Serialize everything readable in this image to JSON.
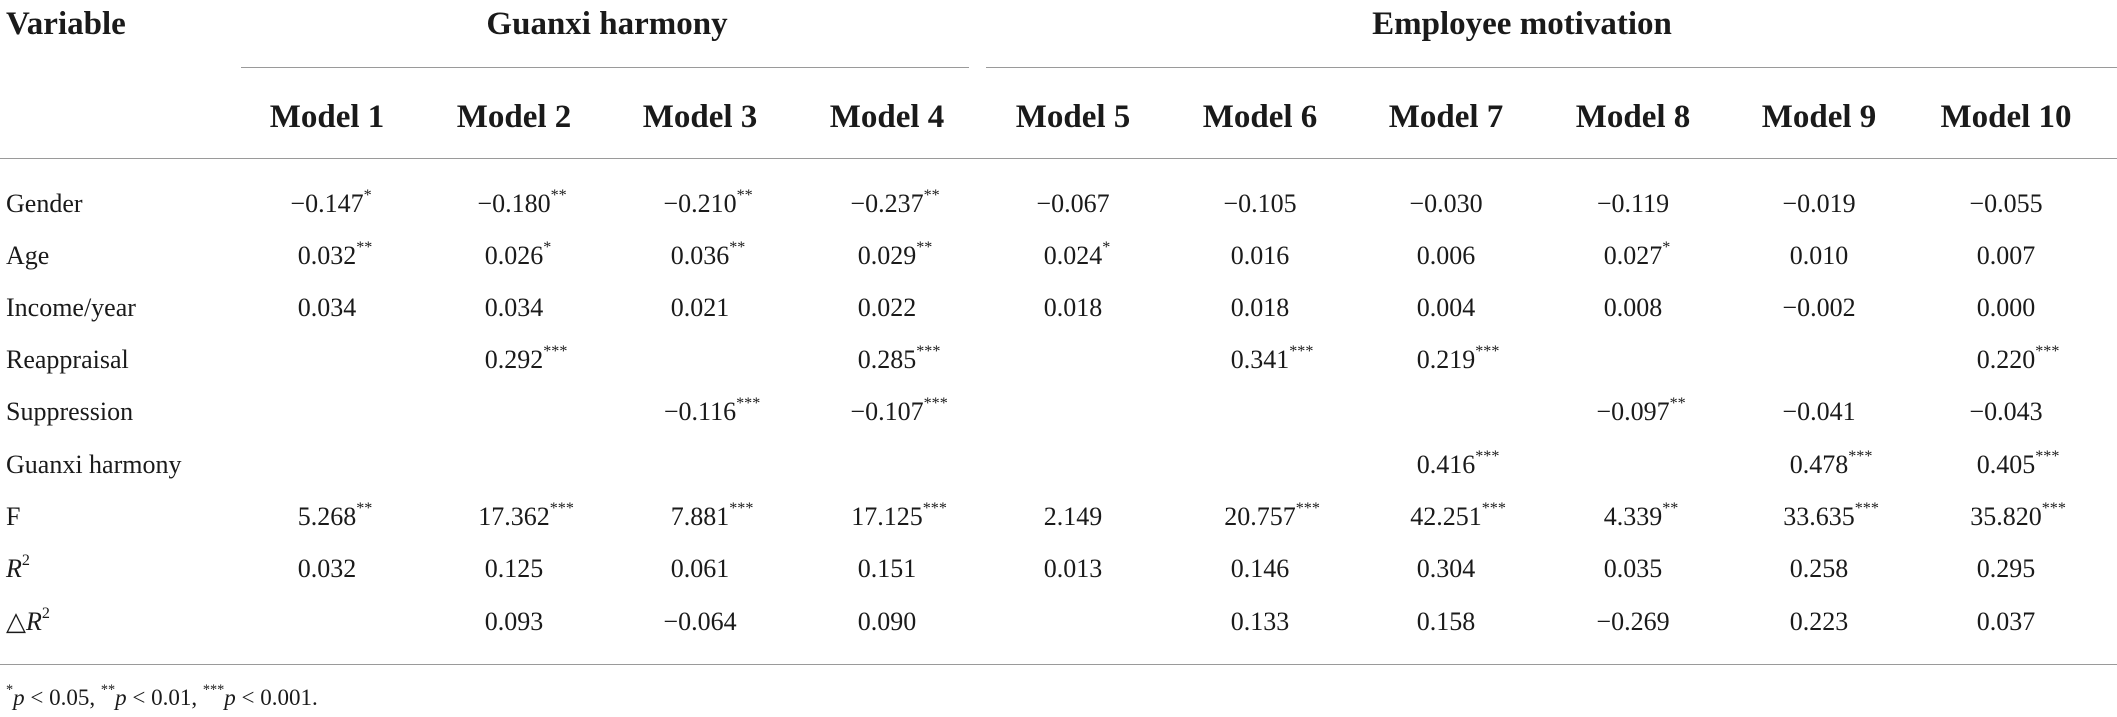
{
  "table": {
    "corner_header": "Variable",
    "groups": [
      "Guanxi harmony",
      "Employee motivation"
    ],
    "models": [
      "Model 1",
      "Model 2",
      "Model 3",
      "Model 4",
      "Model 5",
      "Model 6",
      "Model 7",
      "Model 8",
      "Model 9",
      "Model 10"
    ],
    "rows": [
      {
        "label": "Gender",
        "cells": [
          "−0.147*",
          "−0.180**",
          "−0.210**",
          "−0.237**",
          "−0.067",
          "−0.105",
          "−0.030",
          "−0.119",
          "−0.019",
          "−0.055"
        ]
      },
      {
        "label": "Age",
        "cells": [
          "0.032**",
          "0.026*",
          "0.036**",
          "0.029**",
          "0.024*",
          "0.016",
          "0.006",
          "0.027*",
          "0.010",
          "0.007"
        ]
      },
      {
        "label": "Income/year",
        "cells": [
          "0.034",
          "0.034",
          "0.021",
          "0.022",
          "0.018",
          "0.018",
          "0.004",
          "0.008",
          "−0.002",
          "0.000"
        ]
      },
      {
        "label": "Reappraisal",
        "cells": [
          "",
          "0.292***",
          "",
          "0.285***",
          "",
          "0.341***",
          "0.219***",
          "",
          "",
          "0.220***"
        ]
      },
      {
        "label": "Suppression",
        "cells": [
          "",
          "",
          "−0.116***",
          "−0.107***",
          "",
          "",
          "",
          "−0.097**",
          "−0.041",
          "−0.043"
        ]
      },
      {
        "label": "Guanxi harmony",
        "cells": [
          "",
          "",
          "",
          "",
          "",
          "",
          "0.416***",
          "",
          "0.478***",
          "0.405***"
        ]
      },
      {
        "label": "F",
        "cells": [
          "5.268**",
          "17.362***",
          "7.881***",
          "17.125***",
          "2.149",
          "20.757***",
          "42.251***",
          "4.339**",
          "33.635***",
          "35.820***"
        ]
      },
      {
        "label_prefix": "",
        "label_italic": "R",
        "label_sup": "2",
        "cells": [
          "0.032",
          "0.125",
          "0.061",
          "0.151",
          "0.013",
          "0.146",
          "0.304",
          "0.035",
          "0.258",
          "0.295"
        ]
      },
      {
        "label_prefix": "△",
        "label_italic": "R",
        "label_sup": "2",
        "cells": [
          "",
          "0.093",
          "−0.064",
          "0.090",
          "",
          "0.133",
          "0.158",
          "−0.269",
          "0.223",
          "0.037"
        ]
      }
    ],
    "footnote": {
      "parts": [
        {
          "sup": "*",
          "var": "p",
          "text": " < 0.05, "
        },
        {
          "sup": "**",
          "var": "p",
          "text": " < 0.01, "
        },
        {
          "sup": "***",
          "var": "p",
          "text": " < 0.001."
        }
      ]
    }
  }
}
